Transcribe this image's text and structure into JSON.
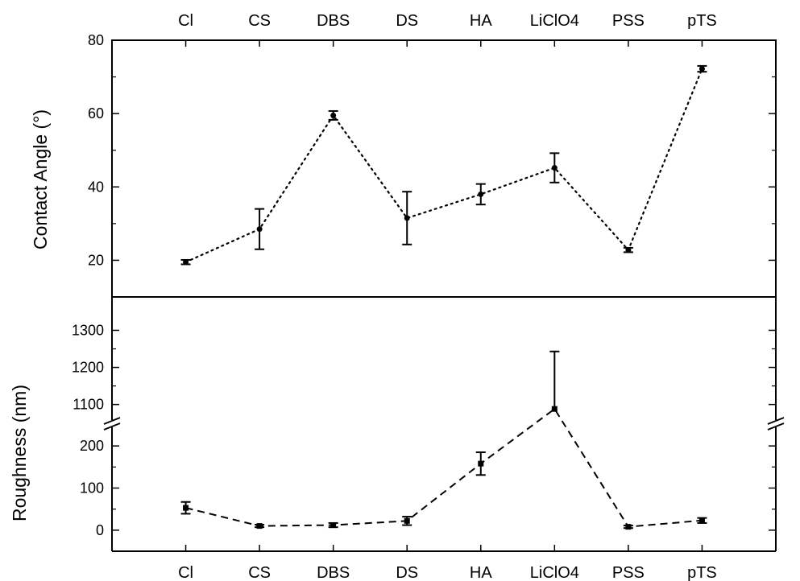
{
  "chart_data": [
    {
      "type": "line",
      "categories": [
        "Cl",
        "CS",
        "DBS",
        "DS",
        "HA",
        "LiClO4",
        "PSS",
        "pTS"
      ],
      "ylabel": "Contact Angle (°)",
      "ylim": [
        10,
        80
      ],
      "yticks": [
        20,
        40,
        60,
        80
      ],
      "line_style": "dotted",
      "series": [
        {
          "values": [
            19.5,
            28.5,
            59.5,
            31.5,
            38,
            45.2,
            22.8,
            72.2
          ],
          "errors": [
            0.6,
            5.5,
            1.2,
            7.2,
            2.8,
            4.0,
            0.6,
            0.8
          ]
        }
      ]
    },
    {
      "type": "line",
      "categories": [
        "Cl",
        "CS",
        "DBS",
        "DS",
        "HA",
        "LiClO4",
        "PSS",
        "pTS"
      ],
      "ylabel": "Roughness (nm)",
      "ylim": [
        -50,
        1390
      ],
      "broken_axis": {
        "lower_range": [
          -50,
          250
        ],
        "upper_range": [
          1045,
          1390
        ]
      },
      "yticks": [
        0,
        100,
        200,
        1100,
        1200,
        1300
      ],
      "line_style": "dashed",
      "series": [
        {
          "values": [
            53,
            10,
            12,
            22,
            158,
            1088,
            8,
            23
          ],
          "errors_up": [
            14,
            3,
            5,
            10,
            27,
            155,
            3,
            6
          ],
          "errors_down": [
            14,
            3,
            5,
            10,
            27,
            0,
            3,
            6
          ]
        }
      ]
    }
  ]
}
